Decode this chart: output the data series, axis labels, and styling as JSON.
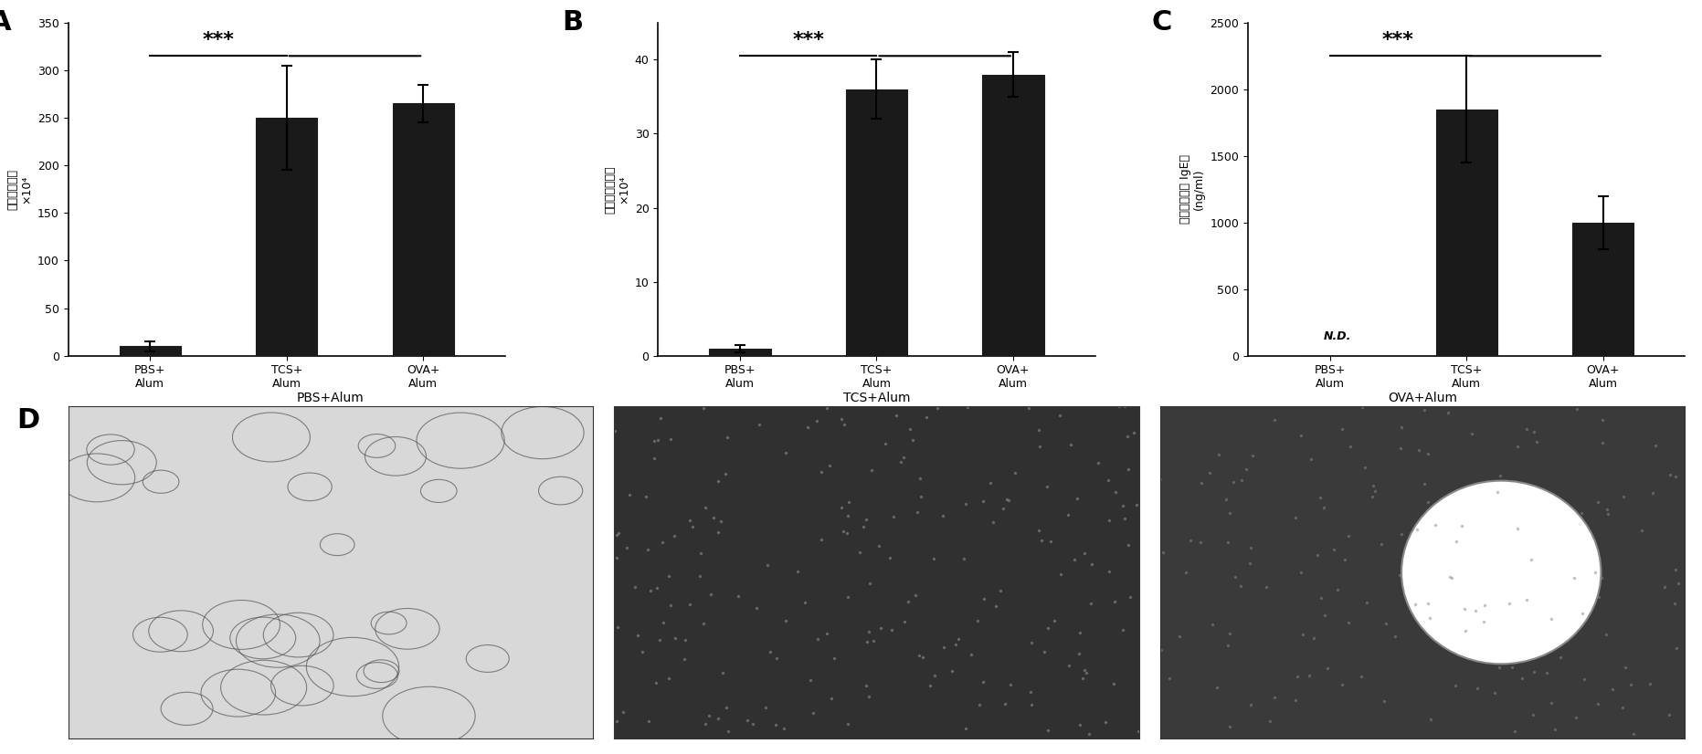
{
  "panel_A": {
    "categories": [
      "PBS+\nAlum",
      "TCS+\nAlum",
      "OVA+\nAlum"
    ],
    "values": [
      10,
      250,
      265
    ],
    "errors": [
      5,
      55,
      20
    ],
    "ylabel": "炎性细胞总数\n×10⁴",
    "ylim": [
      0,
      350
    ],
    "yticks": [
      0,
      50,
      100,
      150,
      200,
      250,
      300,
      350
    ],
    "sig_line": [
      1,
      2
    ],
    "sig_text": "***",
    "panel_label": "A"
  },
  "panel_B": {
    "categories": [
      "PBS+\nAlum",
      "TCS+\nAlum",
      "OVA+\nAlum"
    ],
    "values": [
      1,
      36,
      38
    ],
    "errors": [
      0.5,
      4,
      3
    ],
    "ylabel": "嗜酸性粒细胞数\n×10⁴",
    "ylim": [
      0,
      45
    ],
    "yticks": [
      0,
      10,
      20,
      30,
      40
    ],
    "sig_line": [
      1,
      2
    ],
    "sig_text": "***",
    "panel_label": "B"
  },
  "panel_C": {
    "categories": [
      "PBS+\nAlum",
      "TCS+\nAlum",
      "OVA+\nAlum"
    ],
    "values": [
      0,
      1850,
      1000
    ],
    "errors": [
      0,
      400,
      200
    ],
    "ylabel": "抗原特异性的 IgE）\n(ng/ml)",
    "ylim": [
      0,
      2500
    ],
    "yticks": [
      0,
      500,
      1000,
      1500,
      2000,
      2500
    ],
    "sig_line": [
      1,
      2
    ],
    "sig_text": "***",
    "nd_label": "N.D.",
    "panel_label": "C"
  },
  "bar_color": "#1a1a1a",
  "background_color": "#ffffff",
  "panel_D_labels": [
    "PBS+Alum",
    "TCS+Alum",
    "OVA+Alum"
  ]
}
